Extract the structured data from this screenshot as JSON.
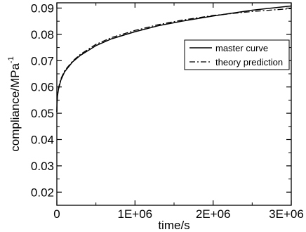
{
  "chart_data": {
    "type": "line",
    "title": "",
    "xlabel": "time/s",
    "ylabel_main": "compliance/MPa",
    "ylabel_superscript": "-1",
    "xlim": [
      0,
      3000000
    ],
    "ylim": [
      0.015,
      0.092
    ],
    "x_ticks": [
      {
        "value": 0,
        "label": "0"
      },
      {
        "value": 1000000,
        "label": "1E+06"
      },
      {
        "value": 2000000,
        "label": "2E+06"
      },
      {
        "value": 3000000,
        "label": "3E+06"
      }
    ],
    "y_ticks": [
      {
        "value": 0.02,
        "label": "0.02"
      },
      {
        "value": 0.03,
        "label": "0.03"
      },
      {
        "value": 0.04,
        "label": "0.04"
      },
      {
        "value": 0.05,
        "label": "0.05"
      },
      {
        "value": 0.06,
        "label": "0.06"
      },
      {
        "value": 0.07,
        "label": "0.07"
      },
      {
        "value": 0.08,
        "label": "0.08"
      },
      {
        "value": 0.09,
        "label": "0.09"
      }
    ],
    "grid": false,
    "legend_position": "right",
    "series": [
      {
        "name": "master curve",
        "style": "solid",
        "color": "#000000",
        "x": [
          0,
          2000,
          8000,
          20000,
          50000,
          100000,
          200000,
          300000,
          500000,
          700000,
          1000000,
          1300000,
          1600000,
          2000000,
          2500000,
          3000000
        ],
        "y": [
          0.0505,
          0.0535,
          0.0565,
          0.059,
          0.0625,
          0.0658,
          0.0695,
          0.072,
          0.0757,
          0.0783,
          0.081,
          0.0833,
          0.085,
          0.087,
          0.0892,
          0.0908
        ]
      },
      {
        "name": "theory prediction",
        "style": "dashdot",
        "color": "#000000",
        "x": [
          0,
          2000,
          8000,
          20000,
          50000,
          100000,
          200000,
          300000,
          500000,
          700000,
          1000000,
          1300000,
          1600000,
          2000000,
          2500000,
          3000000
        ],
        "y": [
          0.0505,
          0.054,
          0.057,
          0.0595,
          0.063,
          0.0662,
          0.0698,
          0.0724,
          0.0762,
          0.0788,
          0.0815,
          0.0837,
          0.0854,
          0.0872,
          0.0887,
          0.0898
        ]
      }
    ]
  }
}
